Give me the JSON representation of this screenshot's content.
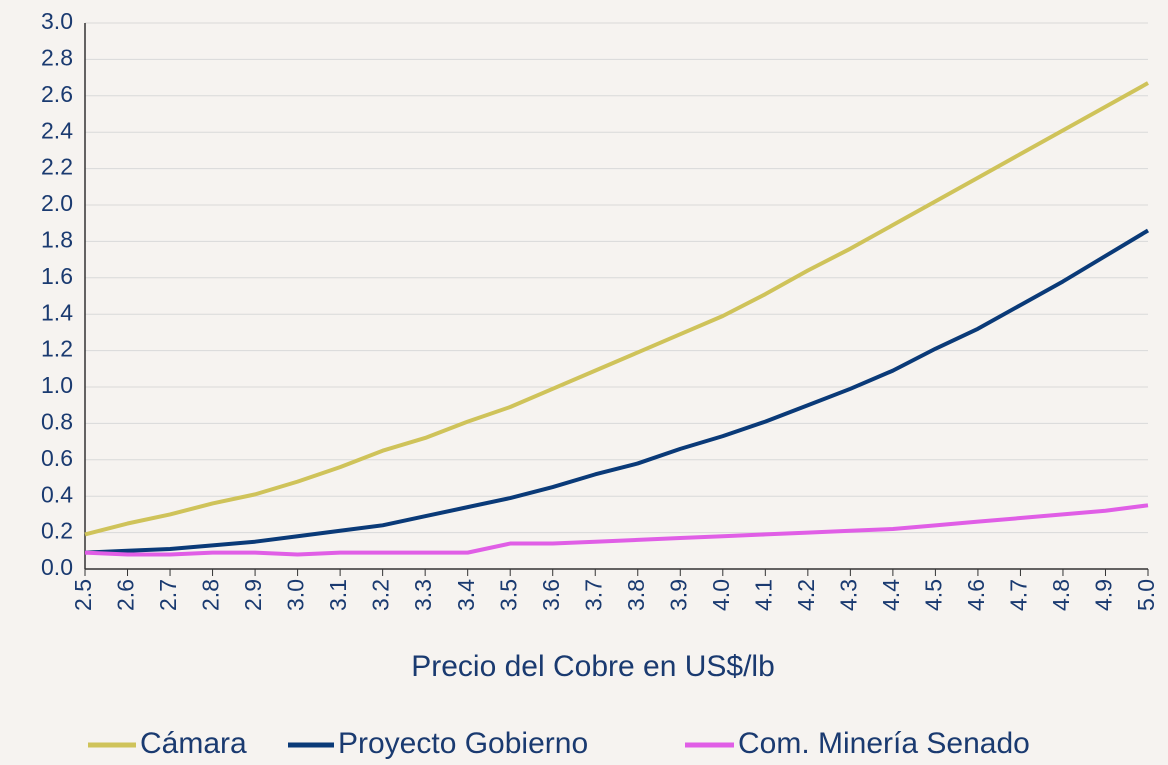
{
  "chart_data": {
    "type": "line",
    "x": [
      2.5,
      2.6,
      2.7,
      2.8,
      2.9,
      3.0,
      3.1,
      3.2,
      3.3,
      3.4,
      3.5,
      3.6,
      3.7,
      3.8,
      3.9,
      4.0,
      4.1,
      4.2,
      4.3,
      4.4,
      4.5,
      4.6,
      4.7,
      4.8,
      4.9,
      5.0
    ],
    "x_label": "Precio del Cobre en US$/lb",
    "series": [
      {
        "name": "Cámara",
        "color": "#cfc35a",
        "values": [
          0.19,
          0.25,
          0.3,
          0.36,
          0.41,
          0.48,
          0.56,
          0.65,
          0.72,
          0.81,
          0.89,
          0.99,
          1.09,
          1.19,
          1.29,
          1.39,
          1.51,
          1.64,
          1.76,
          1.89,
          2.02,
          2.15,
          2.28,
          2.41,
          2.54,
          2.67
        ]
      },
      {
        "name": "Proyecto Gobierno",
        "color": "#0a3a78",
        "values": [
          0.09,
          0.1,
          0.11,
          0.13,
          0.15,
          0.18,
          0.21,
          0.24,
          0.29,
          0.34,
          0.39,
          0.45,
          0.52,
          0.58,
          0.66,
          0.73,
          0.81,
          0.9,
          0.99,
          1.09,
          1.21,
          1.32,
          1.45,
          1.58,
          1.72,
          1.86
        ]
      },
      {
        "name": "Com. Minería Senado",
        "color": "#e05ee6",
        "values": [
          0.09,
          0.08,
          0.08,
          0.09,
          0.09,
          0.08,
          0.09,
          0.09,
          0.09,
          0.09,
          0.14,
          0.14,
          0.15,
          0.16,
          0.17,
          0.18,
          0.19,
          0.2,
          0.21,
          0.22,
          0.24,
          0.26,
          0.28,
          0.3,
          0.32,
          0.35
        ]
      }
    ],
    "xlim": [
      2.5,
      5.0
    ],
    "xticks": [
      2.5,
      2.6,
      2.7,
      2.8,
      2.9,
      {
        "value": 3,
        "label": "3.0"
      },
      3.1,
      3.2,
      3.3,
      3.4,
      3.5,
      3.6,
      3.7,
      3.8,
      3.9,
      {
        "value": 4,
        "label": "4.0"
      },
      4.1,
      4.2,
      4.3,
      4.4,
      4.5,
      4.6,
      4.7,
      4.8,
      4.9,
      {
        "value": 5,
        "label": "5.0"
      }
    ],
    "ylim": [
      0,
      3
    ],
    "yticks": [
      {
        "value": 0,
        "label": "0.0"
      },
      0.2,
      0.4,
      0.6,
      0.8,
      {
        "value": 1,
        "label": "1.0"
      },
      1.2,
      1.4,
      1.6,
      1.8,
      {
        "value": 2,
        "label": "2.0"
      },
      2.2,
      2.4,
      2.6,
      2.8,
      {
        "value": 3,
        "label": "3.0"
      }
    ],
    "grid": true,
    "legend": "bottom"
  }
}
